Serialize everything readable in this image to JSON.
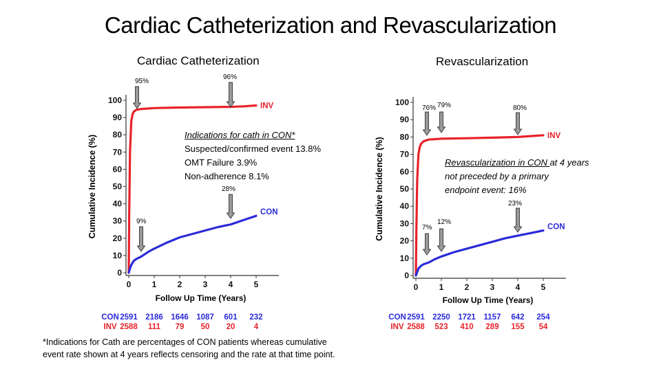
{
  "title": "Cardiac Catheterization and Revascularization",
  "left_heading": "Cardiac Catheterization",
  "right_heading": "Revascularization",
  "left_markers": {
    "inv_early": "95%",
    "inv_4yr": "96%",
    "con_4yr": "28%",
    "con_early": "9%"
  },
  "right_markers": {
    "inv_early": "76%",
    "inv_mid": "79%",
    "inv_4yr": "80%",
    "con_4yr": "23%",
    "con_early": "7%",
    "con_mid": "12%"
  },
  "indications_note": {
    "heading": "Indications for cath in CON*",
    "line1": "Suspected/confirmed event 13.8%",
    "line2": "OMT Failure 3.9%",
    "line3": "Non-adherence 8.1%"
  },
  "revasc_note": {
    "line1_underlined": "Revascularization in CON ",
    "line1_rest": "at 4 years",
    "line2": "not preceded by a primary",
    "line3": "endpoint event: 16%"
  },
  "footnote": {
    "line1": "*Indications for Cath are percentages of CON patients whereas cumulative",
    "line2": "event rate shown at 4 years reflects censoring and the rate at that time point."
  },
  "colors": {
    "inv": "#e8222a",
    "con": "#2b2bd9",
    "axis": "#333333",
    "arrow_fill": "#9a9a9a"
  },
  "chart_data": [
    {
      "type": "line",
      "title": "Cardiac Catheterization",
      "xlabel": "Follow Up Time (Years)",
      "ylabel": "Cumulative Incidence (%)",
      "xlim": [
        0,
        6
      ],
      "ylim": [
        0,
        100
      ],
      "xticks": [
        0,
        1,
        2,
        3,
        4,
        5
      ],
      "yticks": [
        0,
        10,
        20,
        30,
        40,
        50,
        60,
        70,
        80,
        90,
        100
      ],
      "grid": false,
      "series": [
        {
          "name": "INV",
          "label": "INV",
          "color": "#e8222a",
          "x": [
            0,
            0.02,
            0.05,
            0.1,
            0.15,
            0.2,
            0.3,
            0.5,
            1,
            2,
            3,
            4,
            4.5,
            5
          ],
          "y": [
            0,
            35,
            70,
            88,
            92,
            93.5,
            94.5,
            95,
            95.5,
            95.8,
            96,
            96.2,
            96.5,
            97
          ]
        },
        {
          "name": "CON",
          "label": "CON",
          "color": "#2b2bd9",
          "x": [
            0,
            0.05,
            0.1,
            0.2,
            0.3,
            0.5,
            0.75,
            1,
            1.5,
            2,
            2.5,
            3,
            3.5,
            4,
            4.5,
            5
          ],
          "y": [
            0,
            2.5,
            4.5,
            7,
            8,
            9.5,
            12,
            14,
            17.5,
            20.5,
            22.5,
            24.5,
            26.5,
            28,
            30.5,
            33
          ]
        }
      ],
      "risk_table": {
        "rows": [
          {
            "name": "CON",
            "values": [
              "2591",
              "2186",
              "1646",
              "1087",
              "601",
              "232"
            ]
          },
          {
            "name": "INV",
            "values": [
              "2588",
              "111",
              "79",
              "50",
              "20",
              "4"
            ]
          }
        ]
      }
    },
    {
      "type": "line",
      "title": "Revascularization",
      "xlabel": "Follow Up Time (Years)",
      "ylabel": "Cumulative Incidence (%)",
      "xlim": [
        0,
        6
      ],
      "ylim": [
        0,
        100
      ],
      "xticks": [
        0,
        1,
        2,
        3,
        4,
        5
      ],
      "yticks": [
        0,
        10,
        20,
        30,
        40,
        50,
        60,
        70,
        80,
        90,
        100
      ],
      "grid": false,
      "series": [
        {
          "name": "INV",
          "label": "INV",
          "color": "#e8222a",
          "x": [
            0,
            0.02,
            0.05,
            0.1,
            0.15,
            0.2,
            0.3,
            0.5,
            1,
            2,
            3,
            4,
            4.5,
            5
          ],
          "y": [
            0,
            25,
            55,
            70,
            74,
            76,
            77.5,
            78.5,
            79,
            79.3,
            79.6,
            80,
            80.5,
            81
          ]
        },
        {
          "name": "CON",
          "label": "CON",
          "color": "#2b2bd9",
          "x": [
            0,
            0.05,
            0.1,
            0.2,
            0.3,
            0.5,
            0.75,
            1,
            1.5,
            2,
            2.5,
            3,
            3.5,
            4,
            4.5,
            5
          ],
          "y": [
            0,
            2,
            4,
            5.5,
            6.5,
            7.5,
            9.5,
            11,
            13.5,
            15.5,
            17.5,
            19.5,
            21.5,
            23,
            24.5,
            26
          ]
        }
      ],
      "risk_table": {
        "rows": [
          {
            "name": "CON",
            "values": [
              "2591",
              "2250",
              "1721",
              "1157",
              "642",
              "254"
            ]
          },
          {
            "name": "INV",
            "values": [
              "2588",
              "523",
              "410",
              "289",
              "155",
              "54"
            ]
          }
        ]
      }
    }
  ]
}
